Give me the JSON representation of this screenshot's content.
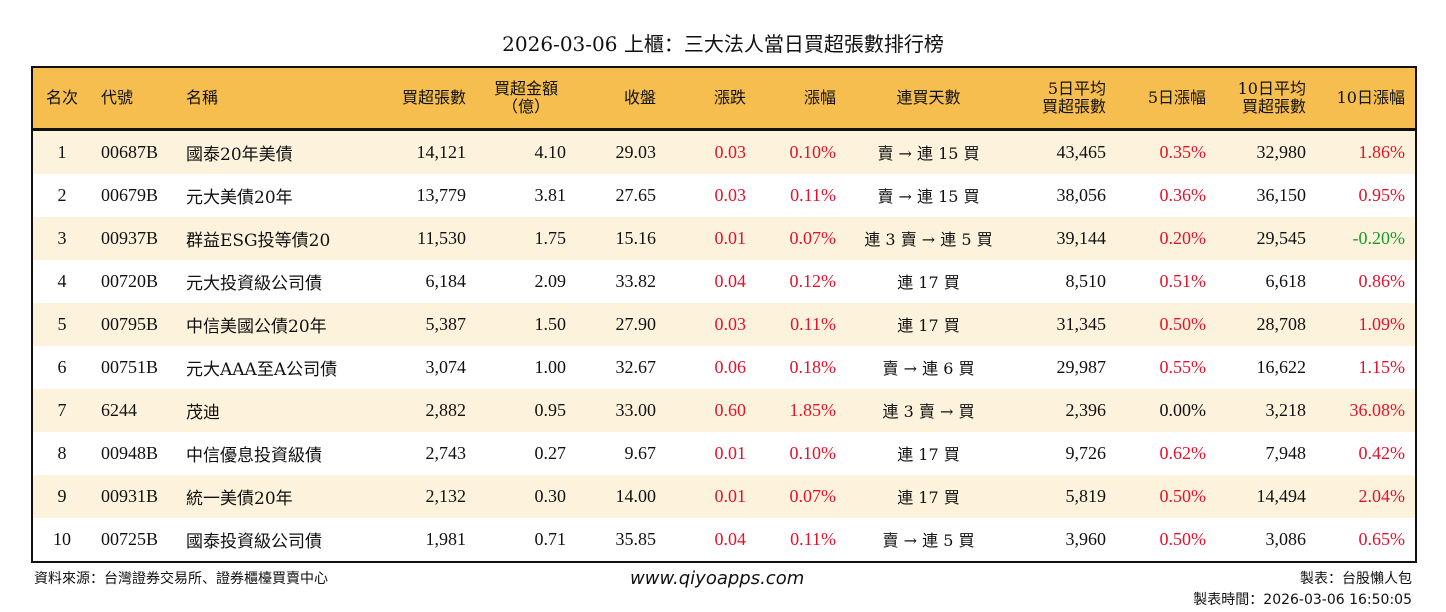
{
  "title": "2026-03-06 上櫃：三大法人當日買超張數排行榜",
  "colors": {
    "header_bg": "#F5BE4F",
    "stripe_bg": "#FDF3DC",
    "up": "#E8102A",
    "down": "#1A9A2A"
  },
  "headers": [
    "名次",
    "代號",
    "名稱",
    "買超張數",
    "買超金額\n（億）",
    "收盤",
    "漲跌",
    "漲幅",
    "連買天數",
    "5日平均\n買超張數",
    "5日漲幅",
    "10日平均\n買超張數",
    "10日漲幅"
  ],
  "rows": [
    [
      "1",
      "00687B",
      "國泰20年美債",
      "14,121",
      "4.10",
      "29.03",
      "0.03",
      "0.10%",
      "賣 → 連 15 買",
      "43,465",
      "0.35%",
      "32,980",
      "1.86%"
    ],
    [
      "2",
      "00679B",
      "元大美債20年",
      "13,779",
      "3.81",
      "27.65",
      "0.03",
      "0.11%",
      "賣 → 連 15 買",
      "38,056",
      "0.36%",
      "36,150",
      "0.95%"
    ],
    [
      "3",
      "00937B",
      "群益ESG投等債20",
      "11,530",
      "1.75",
      "15.16",
      "0.01",
      "0.07%",
      "連 3 賣 → 連 5 買",
      "39,144",
      "0.20%",
      "29,545",
      "-0.20%"
    ],
    [
      "4",
      "00720B",
      "元大投資級公司債",
      "6,184",
      "2.09",
      "33.82",
      "0.04",
      "0.12%",
      "連 17 買",
      "8,510",
      "0.51%",
      "6,618",
      "0.86%"
    ],
    [
      "5",
      "00795B",
      "中信美國公債20年",
      "5,387",
      "1.50",
      "27.90",
      "0.03",
      "0.11%",
      "連 17 買",
      "31,345",
      "0.50%",
      "28,708",
      "1.09%"
    ],
    [
      "6",
      "00751B",
      "元大AAA至A公司債",
      "3,074",
      "1.00",
      "32.67",
      "0.06",
      "0.18%",
      "賣 → 連 6 買",
      "29,987",
      "0.55%",
      "16,622",
      "1.15%"
    ],
    [
      "7",
      "6244",
      "茂迪",
      "2,882",
      "0.95",
      "33.00",
      "0.60",
      "1.85%",
      "連 3 賣 → 買",
      "2,396",
      "0.00%",
      "3,218",
      "36.08%"
    ],
    [
      "8",
      "00948B",
      "中信優息投資級債",
      "2,743",
      "0.27",
      "9.67",
      "0.01",
      "0.10%",
      "連 17 買",
      "9,726",
      "0.62%",
      "7,948",
      "0.42%"
    ],
    [
      "9",
      "00931B",
      "統一美債20年",
      "2,132",
      "0.30",
      "14.00",
      "0.01",
      "0.07%",
      "連 17 買",
      "5,819",
      "0.50%",
      "14,494",
      "2.04%"
    ],
    [
      "10",
      "00725B",
      "國泰投資級公司債",
      "1,981",
      "0.71",
      "35.85",
      "0.04",
      "0.11%",
      "賣 → 連 5 買",
      "3,960",
      "0.50%",
      "3,086",
      "0.65%"
    ]
  ],
  "footer": {
    "source": "資料來源：台灣證券交易所、證券櫃檯買賣中心",
    "website": "www.qiyoapps.com",
    "maker": "製表：台股懶人包",
    "time": "製表時間：2026-03-06 16:50:05"
  }
}
